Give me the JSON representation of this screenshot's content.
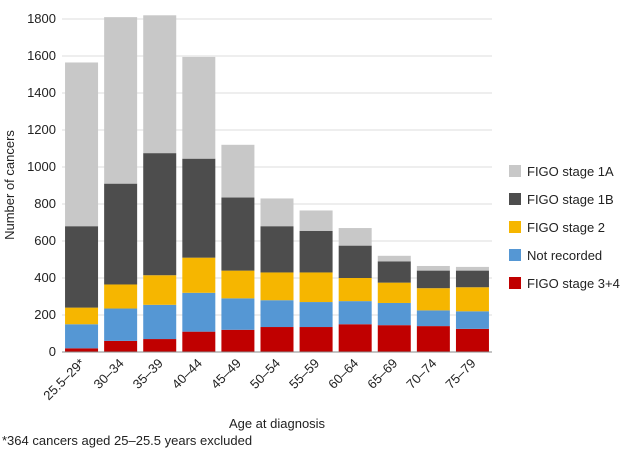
{
  "chart_data": {
    "type": "stacked_bar",
    "x_label": "Age at diagnosis",
    "y_label": "Number of cancers",
    "footnote": "*364 cancers aged 25–25.5 years excluded",
    "categories": [
      "25.5–29*",
      "30–34",
      "35–39",
      "40–44",
      "45–49",
      "50–54",
      "55–59",
      "60–64",
      "65–69",
      "70–74",
      "75–79"
    ],
    "series": [
      {
        "name": "FIGO stage 1A",
        "color": "#c8c8c8",
        "values": [
          885,
          900,
          745,
          550,
          285,
          150,
          110,
          95,
          30,
          25,
          20
        ]
      },
      {
        "name": "FIGO stage 1B",
        "color": "#4d4d4d",
        "values": [
          440,
          545,
          660,
          535,
          395,
          250,
          225,
          175,
          115,
          95,
          90
        ]
      },
      {
        "name": "FIGO stage 2",
        "color": "#f6b600",
        "values": [
          90,
          130,
          160,
          190,
          150,
          150,
          160,
          125,
          110,
          120,
          130
        ]
      },
      {
        "name": "Not recorded",
        "color": "#5597d4",
        "values": [
          130,
          175,
          185,
          210,
          170,
          145,
          135,
          125,
          120,
          85,
          95
        ]
      },
      {
        "name": "FIGO stage 3+4",
        "color": "#c00000",
        "values": [
          20,
          60,
          70,
          110,
          120,
          135,
          135,
          150,
          145,
          140,
          125
        ]
      }
    ],
    "ylim": [
      0,
      1800
    ],
    "yticks": [
      0,
      200,
      400,
      600,
      800,
      1000,
      1200,
      1400,
      1600,
      1800
    ],
    "grid": true,
    "legend": "right"
  }
}
